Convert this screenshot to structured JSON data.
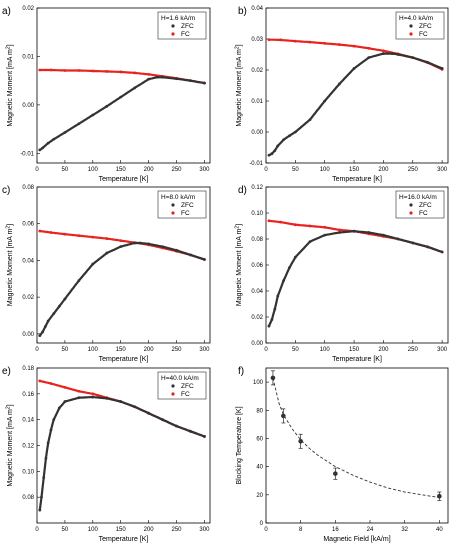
{
  "figure": {
    "panels": [
      "a)",
      "b)",
      "c)",
      "d)",
      "e)",
      "f)"
    ]
  },
  "colors": {
    "zfc": "#333333",
    "fc": "#e8231d",
    "fit": "#333333"
  },
  "chart_data": [
    {
      "panel": "a)",
      "type": "line",
      "xlabel": "Temperature [K]",
      "ylabel": "Magnetic Moment [mA m2]",
      "ylabel_parts": {
        "main": "Magnetic Moment [mA m",
        "sup": "2",
        "end": "]"
      },
      "xlim": [
        0,
        310
      ],
      "ylim": [
        -0.012,
        0.02
      ],
      "xticks": [
        0,
        50,
        100,
        150,
        200,
        250,
        300
      ],
      "yticks": [
        -0.01,
        0.0,
        0.01,
        0.02
      ],
      "ytick_labels": [
        "-0.01",
        "0.00",
        "0.01",
        "0.02"
      ],
      "legend_title": "H=1.6 kA/m",
      "legend_position": "top-right",
      "series": [
        {
          "name": "ZFC",
          "x": [
            5,
            10,
            20,
            30,
            50,
            75,
            100,
            125,
            150,
            175,
            200,
            215,
            225,
            250,
            275,
            300
          ],
          "y": [
            -0.0093,
            -0.0089,
            -0.0079,
            -0.0071,
            -0.0057,
            -0.0039,
            -0.0021,
            -0.0003,
            0.0016,
            0.0035,
            0.0053,
            0.0057,
            0.0057,
            0.0054,
            0.005,
            0.0045
          ]
        },
        {
          "name": "FC",
          "x": [
            5,
            25,
            50,
            75,
            100,
            125,
            150,
            175,
            200,
            225,
            250,
            275,
            300
          ],
          "y": [
            0.0072,
            0.0072,
            0.0071,
            0.0071,
            0.007,
            0.0069,
            0.0068,
            0.0066,
            0.0063,
            0.0059,
            0.0055,
            0.005,
            0.0045
          ]
        }
      ]
    },
    {
      "panel": "b)",
      "type": "line",
      "xlabel": "Temperature [K]",
      "ylabel": "Magnetic Moment [mA m2]",
      "ylabel_parts": {
        "main": "Magnetic Moment [mA m",
        "sup": "2",
        "end": "]"
      },
      "xlim": [
        0,
        310
      ],
      "ylim": [
        -0.01,
        0.04
      ],
      "xticks": [
        0,
        50,
        100,
        150,
        200,
        250,
        300
      ],
      "yticks": [
        -0.01,
        0.0,
        0.01,
        0.02,
        0.03,
        0.04
      ],
      "ytick_labels": [
        "-0.01",
        "0.00",
        "0.01",
        "0.02",
        "0.03",
        "0.04"
      ],
      "legend_title": "H=4.0 kA/m",
      "legend_position": "top-right",
      "series": [
        {
          "name": "ZFC",
          "x": [
            5,
            10,
            15,
            20,
            30,
            40,
            50,
            75,
            100,
            125,
            150,
            175,
            200,
            215,
            225,
            250,
            275,
            300
          ],
          "y": [
            -0.0075,
            -0.007,
            -0.006,
            -0.0045,
            -0.0025,
            -0.0012,
            0.0,
            0.004,
            0.01,
            0.0155,
            0.0205,
            0.024,
            0.0253,
            0.0253,
            0.025,
            0.024,
            0.0225,
            0.0205
          ]
        },
        {
          "name": "FC",
          "x": [
            5,
            25,
            50,
            75,
            100,
            125,
            150,
            175,
            200,
            225,
            250,
            275,
            300
          ],
          "y": [
            0.0298,
            0.0297,
            0.0293,
            0.029,
            0.0286,
            0.0282,
            0.0277,
            0.027,
            0.0262,
            0.0252,
            0.024,
            0.0224,
            0.0202
          ]
        }
      ]
    },
    {
      "panel": "c)",
      "type": "line",
      "xlabel": "Temperature [K]",
      "ylabel": "Magnetic Moment [mA m2]",
      "ylabel_parts": {
        "main": "Magnetic Moment [mA m",
        "sup": "2",
        "end": "]"
      },
      "xlim": [
        0,
        310
      ],
      "ylim": [
        -0.005,
        0.08
      ],
      "xticks": [
        0,
        50,
        100,
        150,
        200,
        250,
        300
      ],
      "yticks": [
        0.0,
        0.02,
        0.04,
        0.06,
        0.08
      ],
      "ytick_labels": [
        "0.00",
        "0.02",
        "0.04",
        "0.06",
        "0.08"
      ],
      "legend_title": "H=8.0 kA/m",
      "legend_position": "top-right",
      "series": [
        {
          "name": "ZFC",
          "x": [
            5,
            10,
            15,
            20,
            30,
            40,
            50,
            75,
            100,
            125,
            150,
            175,
            185,
            200,
            225,
            250,
            275,
            300
          ],
          "y": [
            -0.001,
            0.001,
            0.004,
            0.007,
            0.011,
            0.015,
            0.019,
            0.029,
            0.038,
            0.044,
            0.0475,
            0.0495,
            0.0495,
            0.049,
            0.0475,
            0.0455,
            0.043,
            0.0405
          ]
        },
        {
          "name": "FC",
          "x": [
            5,
            25,
            50,
            75,
            100,
            125,
            150,
            175,
            200,
            225,
            250,
            275,
            300
          ],
          "y": [
            0.056,
            0.0552,
            0.0543,
            0.0535,
            0.0527,
            0.0519,
            0.0508,
            0.0497,
            0.0485,
            0.0468,
            0.045,
            0.043,
            0.0405
          ]
        }
      ]
    },
    {
      "panel": "d)",
      "type": "line",
      "xlabel": "Temperature [K]",
      "ylabel": "Magnetic Moment [mA m2]",
      "ylabel_parts": {
        "main": "Magnetic Moment [mA m",
        "sup": "2",
        "end": "]"
      },
      "xlim": [
        0,
        310
      ],
      "ylim": [
        0.0,
        0.12
      ],
      "xticks": [
        0,
        50,
        100,
        150,
        200,
        250,
        300
      ],
      "yticks": [
        0.0,
        0.02,
        0.04,
        0.06,
        0.08,
        0.1,
        0.12
      ],
      "ytick_labels": [
        "0.00",
        "0.02",
        "0.04",
        "0.06",
        "0.08",
        "0.10",
        "0.12"
      ],
      "legend_title": "H=16.0 kA/m",
      "legend_position": "top-right",
      "series": [
        {
          "name": "ZFC",
          "x": [
            5,
            10,
            15,
            20,
            30,
            40,
            50,
            75,
            100,
            125,
            150,
            175,
            200,
            225,
            250,
            275,
            300
          ],
          "y": [
            0.013,
            0.018,
            0.026,
            0.036,
            0.048,
            0.058,
            0.066,
            0.078,
            0.083,
            0.085,
            0.086,
            0.085,
            0.083,
            0.08,
            0.077,
            0.074,
            0.07
          ]
        },
        {
          "name": "FC",
          "x": [
            5,
            25,
            50,
            75,
            100,
            125,
            150,
            175,
            200,
            225,
            250,
            275,
            300
          ],
          "y": [
            0.094,
            0.093,
            0.091,
            0.09,
            0.089,
            0.087,
            0.086,
            0.084,
            0.082,
            0.08,
            0.077,
            0.074,
            0.07
          ]
        }
      ]
    },
    {
      "panel": "e)",
      "type": "line",
      "xlabel": "Temperature [K]",
      "ylabel": "Magnetic Moment [mA m2]",
      "ylabel_parts": {
        "main": "Magnetic Moment [mA m",
        "sup": "2",
        "end": "]"
      },
      "xlim": [
        0,
        310
      ],
      "ylim": [
        0.06,
        0.18
      ],
      "xticks": [
        0,
        50,
        100,
        150,
        200,
        250,
        300
      ],
      "yticks": [
        0.08,
        0.1,
        0.12,
        0.14,
        0.16,
        0.18
      ],
      "ytick_labels": [
        "0.08",
        "0.10",
        "0.12",
        "0.14",
        "0.16",
        "0.18"
      ],
      "legend_title": "H=40.0 kA/m",
      "legend_position": "top-right",
      "series": [
        {
          "name": "ZFC",
          "x": [
            5,
            8,
            12,
            16,
            20,
            25,
            30,
            40,
            50,
            75,
            100,
            125,
            150,
            175,
            200,
            225,
            250,
            275,
            300
          ],
          "y": [
            0.07,
            0.08,
            0.095,
            0.11,
            0.122,
            0.132,
            0.14,
            0.149,
            0.154,
            0.157,
            0.1575,
            0.1565,
            0.154,
            0.15,
            0.145,
            0.14,
            0.135,
            0.131,
            0.127
          ]
        },
        {
          "name": "FC",
          "x": [
            5,
            25,
            50,
            75,
            100,
            125,
            150,
            175,
            200,
            225,
            250,
            275,
            300
          ],
          "y": [
            0.17,
            0.168,
            0.165,
            0.162,
            0.16,
            0.157,
            0.154,
            0.15,
            0.145,
            0.14,
            0.135,
            0.131,
            0.127
          ]
        }
      ]
    },
    {
      "panel": "f)",
      "type": "scatter",
      "xlabel": "Magnetic Field [kA/m]",
      "ylabel": "Blocking Temperature [K]",
      "xlim": [
        0,
        42
      ],
      "ylim": [
        0,
        110
      ],
      "xticks": [
        0,
        8,
        16,
        24,
        32,
        40
      ],
      "yticks": [
        0,
        20,
        40,
        60,
        80,
        100
      ],
      "ytick_labels": [
        "0",
        "20",
        "40",
        "60",
        "80",
        "100"
      ],
      "points": {
        "x": [
          1.6,
          4.0,
          8.0,
          16.0,
          40.0
        ],
        "y": [
          103,
          76,
          58,
          35,
          19
        ],
        "yerr": [
          5,
          5,
          5,
          4,
          3
        ]
      },
      "fit": {
        "x": [
          1.6,
          3,
          4,
          6,
          8,
          10,
          12,
          16,
          20,
          24,
          28,
          32,
          36,
          40
        ],
        "y": [
          103,
          85,
          77,
          67,
          59,
          53,
          48,
          40,
          34,
          29,
          25,
          22,
          20,
          18
        ]
      }
    }
  ]
}
